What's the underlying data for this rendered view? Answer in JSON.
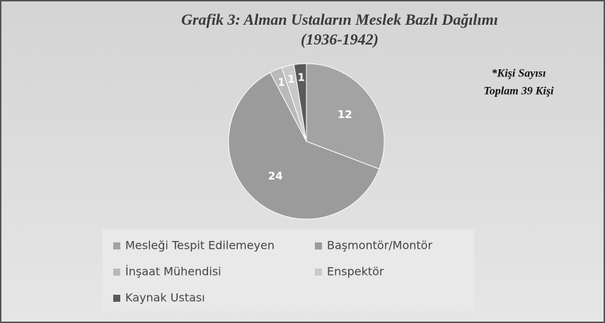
{
  "chart_data": {
    "type": "pie",
    "title": "Grafik 3: Alman Ustaların Meslek Bazlı Dağılımı",
    "subtitle": "(1936-1942)",
    "annotations": [
      "*Kişi Sayısı",
      "Toplam 39 Kişi"
    ],
    "categories": [
      "Mesleği Tespit Edilemeyen",
      "Başmontör/Montör",
      "İnşaat Mühendisi",
      "Enspektör",
      "Kaynak Ustası"
    ],
    "values": [
      12,
      24,
      1,
      1,
      1
    ],
    "colors": [
      "#a3a3a3",
      "#9b9b9b",
      "#b9b9b9",
      "#c9c9c9",
      "#5a5a5a"
    ],
    "legend": "bottom"
  }
}
